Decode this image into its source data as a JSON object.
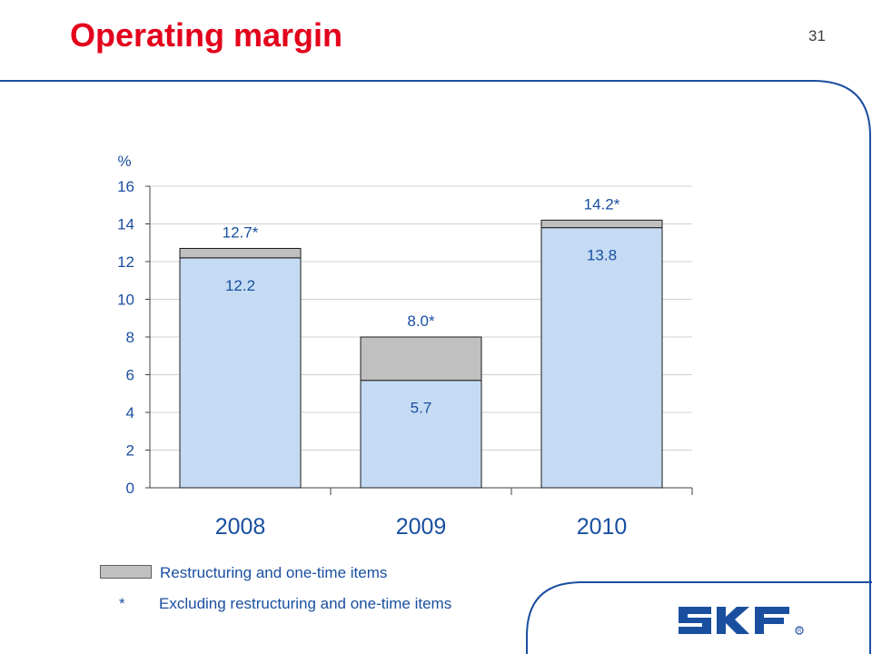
{
  "slide": {
    "title": "Operating margin",
    "page_number": "31"
  },
  "logo": {
    "text": "SKF",
    "icon": "skf-logo"
  },
  "legend": {
    "restructuring_label": "Restructuring and one-time items",
    "restructuring_color": "#c0c0c0"
  },
  "footnote": {
    "mark": "*",
    "text": "Excluding restructuring and one-time items"
  },
  "colors": {
    "title": "#e3001b",
    "bar_base": "#c5dbf4",
    "bar_restructuring": "#c0c0c0",
    "text": "#1a4fa0",
    "accent_line": "#1a4fa0"
  },
  "chart_data": {
    "type": "bar",
    "stacked": true,
    "ylabel": "%",
    "ylim": [
      0,
      16
    ],
    "yticks": [
      0,
      2,
      4,
      6,
      8,
      10,
      12,
      14,
      16
    ],
    "grid": true,
    "categories": [
      "2008",
      "2009",
      "2010"
    ],
    "series": [
      {
        "values": [
          12.2,
          5.7,
          13.8
        ],
        "labels": [
          "12.2",
          "5.7",
          "13.8"
        ],
        "color": "#c5dbf4"
      },
      {
        "name": "Restructuring and one-time items",
        "values": [
          0.5,
          2.3,
          0.4
        ],
        "color": "#c0c0c0"
      }
    ],
    "total_labels": [
      "12.7*",
      "8.0*",
      "14.2*"
    ],
    "totals": [
      12.7,
      8.0,
      14.2
    ]
  }
}
